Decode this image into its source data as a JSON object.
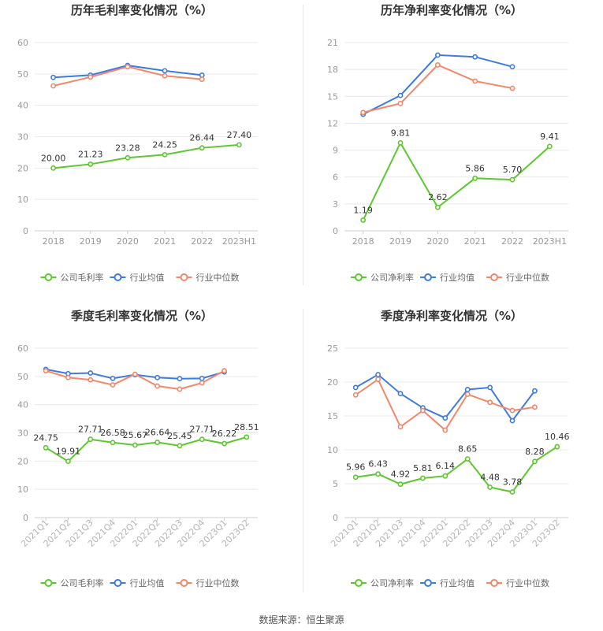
{
  "colors": {
    "company": "#5dc72f",
    "avg": "#3e7ae0",
    "median": "#f2876a",
    "grid": "#e9e9e9",
    "axis": "#9a9a9a",
    "label": "#333333",
    "title": "#333333"
  },
  "source": "数据来源：恒生聚源",
  "chart_data": [
    {
      "type": "line",
      "title": "历年毛利率变化情况（%）",
      "categories": [
        "2018",
        "2019",
        "2020",
        "2021",
        "2022",
        "2023H1"
      ],
      "ylim": [
        0,
        60
      ],
      "yticks": [
        0,
        10,
        20,
        30,
        40,
        50,
        60
      ],
      "series": [
        {
          "name": "公司毛利率",
          "values": [
            20.0,
            21.23,
            23.28,
            24.25,
            26.44,
            27.4
          ]
        },
        {
          "name": "行业均值",
          "values": [
            48.9,
            49.6,
            52.7,
            51.0,
            49.6,
            null
          ]
        },
        {
          "name": "行业中位数",
          "values": [
            46.2,
            49.0,
            52.3,
            49.4,
            48.3,
            null
          ]
        }
      ],
      "data_labels": [
        "20.00",
        "21.23",
        "23.28",
        "24.25",
        "26.44",
        "27.40"
      ],
      "legend": [
        "公司毛利率",
        "行业均值",
        "行业中位数"
      ]
    },
    {
      "type": "line",
      "title": "历年净利率变化情况（%）",
      "categories": [
        "2018",
        "2019",
        "2020",
        "2021",
        "2022",
        "2023H1"
      ],
      "ylim": [
        0,
        21
      ],
      "yticks": [
        0,
        3,
        6,
        9,
        12,
        15,
        18,
        21
      ],
      "series": [
        {
          "name": "公司净利率",
          "values": [
            1.19,
            9.81,
            2.62,
            5.86,
            5.7,
            9.41
          ]
        },
        {
          "name": "行业均值",
          "values": [
            13.0,
            15.1,
            19.6,
            19.4,
            18.3,
            null
          ]
        },
        {
          "name": "行业中位数",
          "values": [
            13.2,
            14.2,
            18.5,
            16.7,
            15.9,
            null
          ]
        }
      ],
      "data_labels": [
        "1.19",
        "9.81",
        "2.62",
        "5.86",
        "5.70",
        "9.41"
      ],
      "legend": [
        "公司净利率",
        "行业均值",
        "行业中位数"
      ]
    },
    {
      "type": "line",
      "title": "季度毛利率变化情况（%）",
      "categories": [
        "2021Q1",
        "2021Q2",
        "2021Q3",
        "2021Q4",
        "2022Q1",
        "2022Q2",
        "2022Q3",
        "2022Q4",
        "2023Q1",
        "2023Q2"
      ],
      "ylim": [
        0,
        60
      ],
      "yticks": [
        0,
        10,
        20,
        30,
        40,
        50,
        60
      ],
      "series": [
        {
          "name": "公司毛利率",
          "values": [
            24.75,
            19.91,
            27.71,
            26.58,
            25.67,
            26.64,
            25.45,
            27.71,
            26.22,
            28.51
          ]
        },
        {
          "name": "行业均值",
          "values": [
            52.5,
            51.0,
            51.2,
            49.3,
            50.6,
            49.6,
            49.2,
            49.3,
            51.6,
            null
          ]
        },
        {
          "name": "行业中位数",
          "values": [
            52.0,
            49.6,
            48.8,
            47.0,
            50.8,
            46.6,
            45.5,
            47.7,
            52.0,
            null
          ]
        }
      ],
      "data_labels": [
        "24.75",
        "19.91",
        "27.71",
        "26.58",
        "25.67",
        "26.64",
        "25.45",
        "27.71",
        "26.22",
        "28.51"
      ],
      "legend": [
        "公司毛利率",
        "行业均值",
        "行业中位数"
      ]
    },
    {
      "type": "line",
      "title": "季度净利率变化情况（%）",
      "categories": [
        "2021Q1",
        "2021Q2",
        "2021Q3",
        "2021Q4",
        "2022Q1",
        "2022Q2",
        "2022Q3",
        "2022Q4",
        "2023Q1",
        "2023Q2"
      ],
      "ylim": [
        0,
        25
      ],
      "yticks": [
        0,
        5,
        10,
        15,
        20,
        25
      ],
      "series": [
        {
          "name": "公司净利率",
          "values": [
            5.96,
            6.43,
            4.92,
            5.81,
            6.14,
            8.65,
            4.48,
            3.78,
            8.28,
            10.46
          ]
        },
        {
          "name": "行业均值",
          "values": [
            19.2,
            21.1,
            18.3,
            16.2,
            14.7,
            18.9,
            19.2,
            14.3,
            18.7,
            null
          ]
        },
        {
          "name": "行业中位数",
          "values": [
            18.1,
            20.4,
            13.4,
            15.8,
            12.9,
            18.2,
            17.0,
            15.8,
            16.3,
            null
          ]
        }
      ],
      "data_labels": [
        "5.96",
        "6.43",
        "4.92",
        "5.81",
        "6.14",
        "8.65",
        "4.48",
        "3.78",
        "8.28",
        "10.46"
      ],
      "legend": [
        "公司净利率",
        "行业均值",
        "行业中位数"
      ]
    }
  ]
}
